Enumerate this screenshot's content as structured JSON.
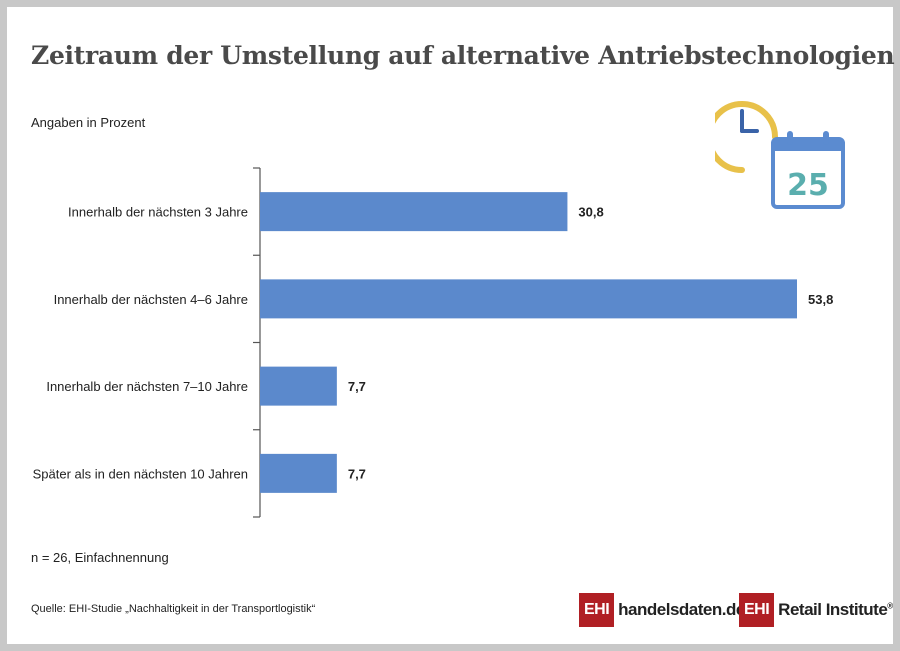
{
  "title": "Zeitraum der Umstellung auf alternative Antriebstechnologien",
  "subtitle": "Angaben in Prozent",
  "note": "n = 26, Einfachnennung",
  "source": "Quelle: EHI-Studie „Nachhaltigkeit in der Transportlogistik“",
  "icon": {
    "name": "clock-calendar-icon",
    "day": "25",
    "clock_color": "#e8c14a",
    "calendar_color": "#5b8bd0",
    "day_color": "#5aaeae"
  },
  "logos": {
    "logo1_mark": "EHI",
    "logo1_text": "handelsdaten.de",
    "logo2_mark": "EHI",
    "logo2_text": "Retail Institute",
    "logo2_reg": "®"
  },
  "colors": {
    "bar": "#5b89cc",
    "axis": "#555555",
    "background": "#c8c8c8"
  },
  "chart_data": {
    "type": "bar",
    "orientation": "horizontal",
    "categories": [
      "Innerhalb der nächsten 3 Jahre",
      "Innerhalb der nächsten 4–6 Jahre",
      "Innerhalb der nächsten 7–10 Jahre",
      "Später als in den nächsten 10 Jahren"
    ],
    "values": [
      30.8,
      53.8,
      7.7,
      7.7
    ],
    "value_labels": [
      "30,8",
      "53,8",
      "7,7",
      "7,7"
    ],
    "xlim": [
      0,
      60
    ],
    "grid": false,
    "legend": "none"
  }
}
